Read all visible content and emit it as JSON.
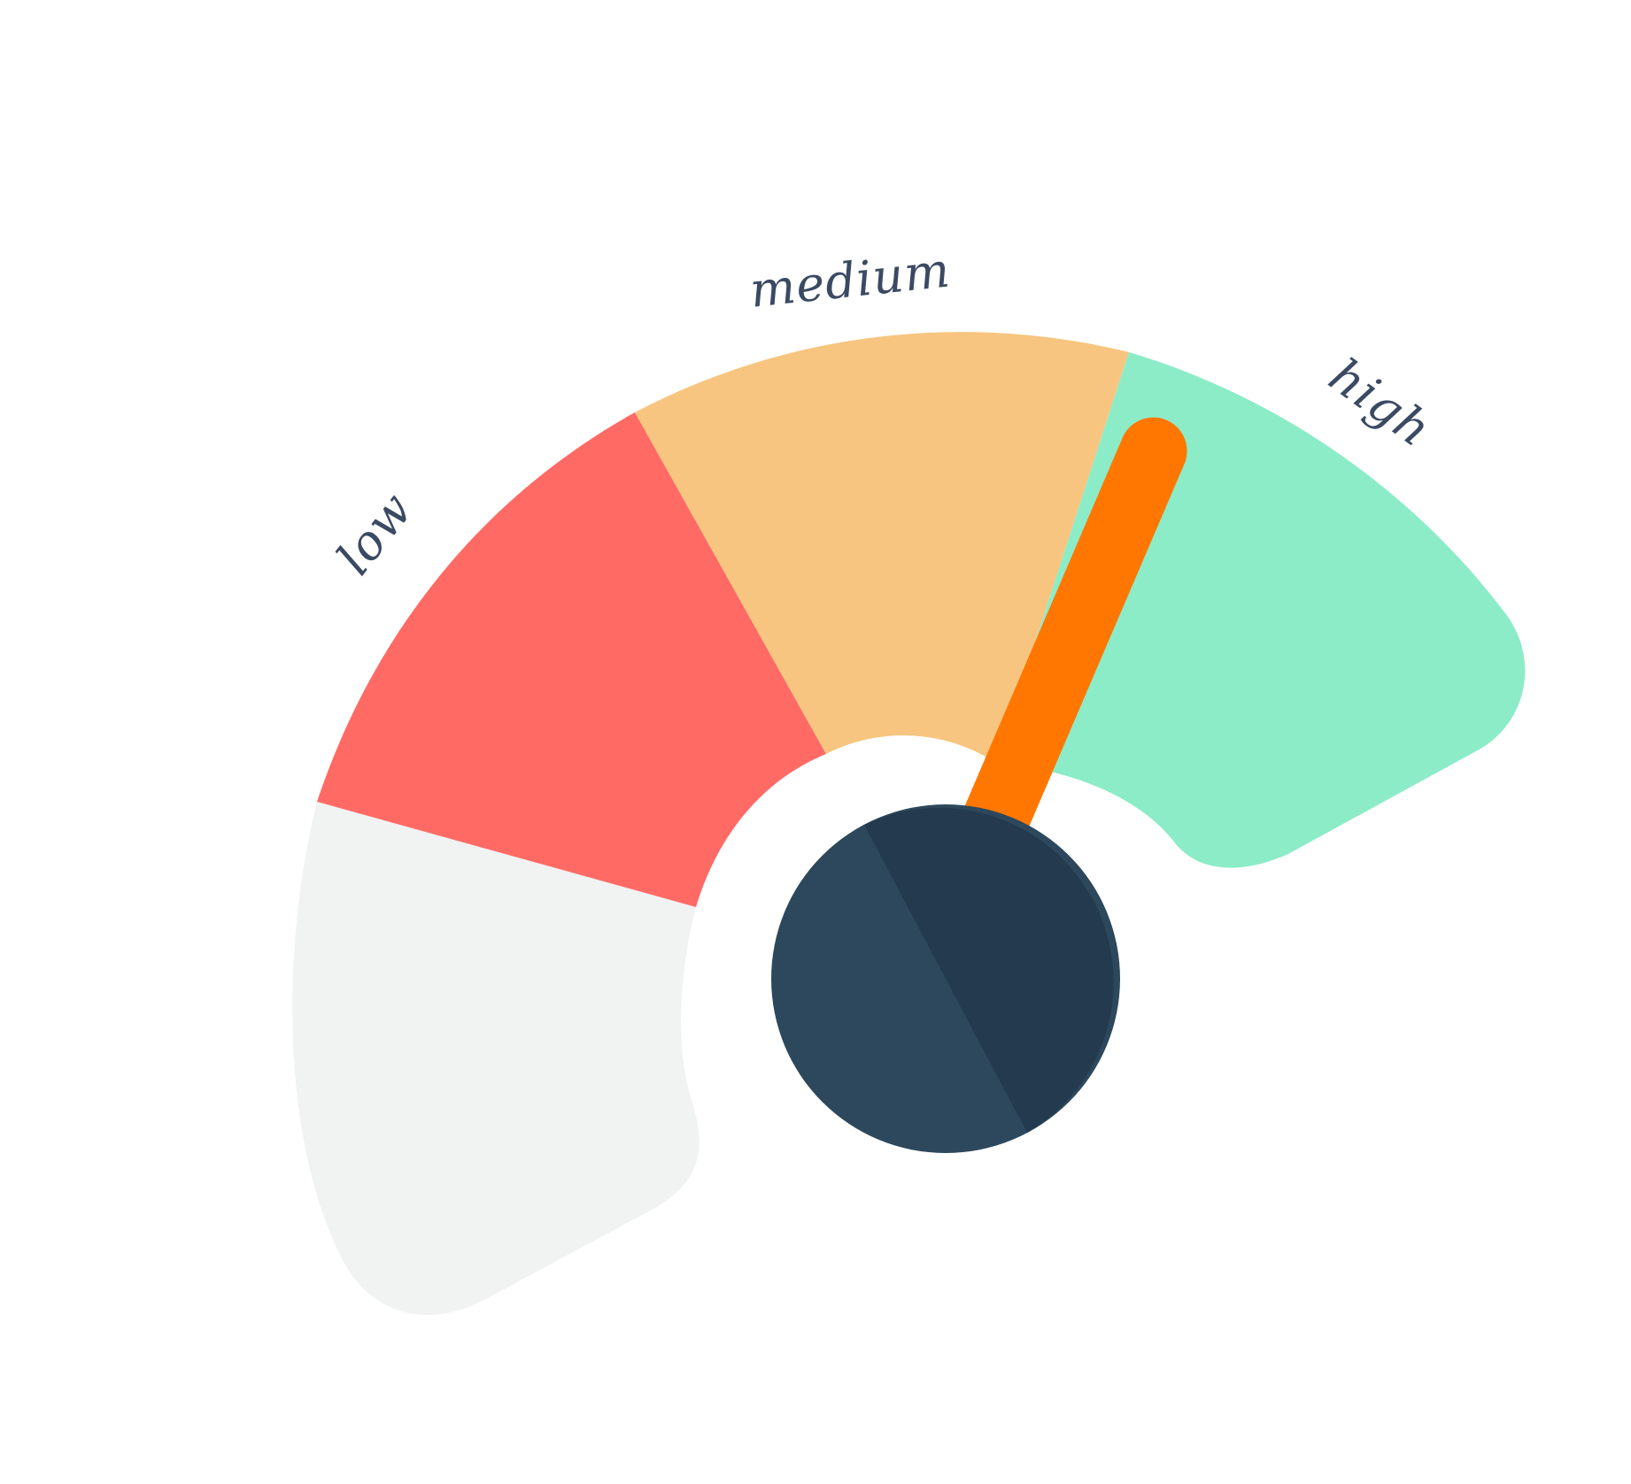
{
  "gauge": {
    "labels": {
      "low": "low",
      "medium": "medium",
      "high": "high"
    },
    "colors": {
      "empty": "#f1f2f2",
      "low": "#ff6a65",
      "medium": "#f7c57f",
      "high": "#8cecc8",
      "needle": "#ff7700",
      "hub_light": "#2d485c",
      "hub_dark": "#233a4f",
      "label_text": "#3b4a63"
    },
    "needle_level": 0.62
  }
}
